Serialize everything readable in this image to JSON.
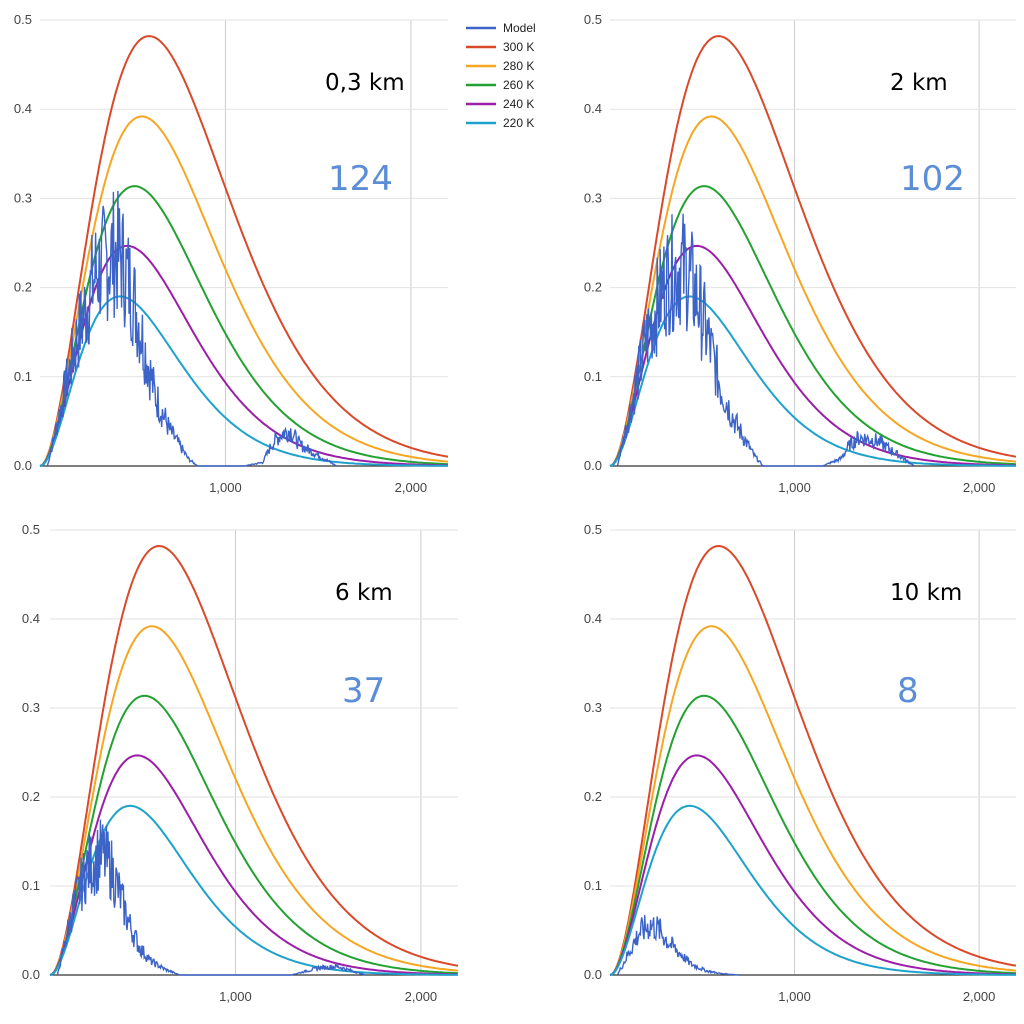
{
  "legend": [
    {
      "name": "Model",
      "color": "#3b63c8"
    },
    {
      "name": "300 K",
      "color": "#d9492a"
    },
    {
      "name": "280 K",
      "color": "#f5a623"
    },
    {
      "name": "260 K",
      "color": "#23a131"
    },
    {
      "name": "240 K",
      "color": "#9b1ea8"
    },
    {
      "name": "220 K",
      "color": "#1ea2cc"
    }
  ],
  "chart_data": [
    {
      "type": "line",
      "annotation_altitude": "0,3 km",
      "annotation_value": "124",
      "xlim": [
        0,
        2200
      ],
      "ylim": [
        0,
        0.5
      ],
      "x_ticks": [
        0,
        1000,
        2000
      ],
      "x_tick_labels": [
        "",
        "1,000",
        "2,000"
      ],
      "y_ticks": [
        0,
        0.1,
        0.2,
        0.3,
        0.4,
        0.5
      ],
      "y_tick_labels": [
        "0.0",
        "0.1",
        "0.2",
        "0.3",
        "0.4",
        "0.5"
      ],
      "grid": true,
      "legend_position": "right",
      "curve_peaks": [
        {
          "name": "300 K",
          "peak_x": 590,
          "peak_y": 0.482
        },
        {
          "name": "280 K",
          "peak_x": 550,
          "peak_y": 0.392
        },
        {
          "name": "260 K",
          "peak_x": 510,
          "peak_y": 0.313
        },
        {
          "name": "240 K",
          "peak_x": 470,
          "peak_y": 0.247
        },
        {
          "name": "220 K",
          "peak_x": 430,
          "peak_y": 0.19
        }
      ],
      "model_envelope": {
        "x": [
          40,
          200,
          300,
          400,
          440,
          500,
          560,
          620,
          700,
          800,
          850,
          1100,
          1200,
          1250,
          1300,
          1350,
          1400,
          1600
        ],
        "y": [
          0.0,
          0.18,
          0.27,
          0.3,
          0.29,
          0.24,
          0.17,
          0.1,
          0.05,
          0.01,
          0.0,
          0.0,
          0.005,
          0.03,
          0.045,
          0.05,
          0.03,
          0.0
        ]
      }
    },
    {
      "type": "line",
      "annotation_altitude": "2 km",
      "annotation_value": "102",
      "xlim": [
        0,
        2200
      ],
      "ylim": [
        0,
        0.5
      ],
      "x_ticks": [
        0,
        1000,
        2000
      ],
      "x_tick_labels": [
        "",
        "1,000",
        "2,000"
      ],
      "y_ticks": [
        0,
        0.1,
        0.2,
        0.3,
        0.4,
        0.5
      ],
      "y_tick_labels": [
        "0.0",
        "0.1",
        "0.2",
        "0.3",
        "0.4",
        "0.5"
      ],
      "grid": true,
      "model_envelope": {
        "x": [
          40,
          200,
          300,
          380,
          420,
          480,
          540,
          600,
          680,
          780,
          830,
          1150,
          1250,
          1300,
          1350,
          1450,
          1650
        ],
        "y": [
          0.0,
          0.18,
          0.26,
          0.28,
          0.27,
          0.23,
          0.17,
          0.11,
          0.06,
          0.015,
          0.0,
          0.0,
          0.01,
          0.03,
          0.04,
          0.035,
          0.0
        ]
      }
    },
    {
      "type": "line",
      "annotation_altitude": "6 km",
      "annotation_value": "37",
      "xlim": [
        0,
        2200
      ],
      "ylim": [
        0,
        0.5
      ],
      "x_ticks": [
        0,
        1000,
        2000
      ],
      "x_tick_labels": [
        "",
        "1,000",
        "2,000"
      ],
      "y_ticks": [
        0,
        0.1,
        0.2,
        0.3,
        0.4,
        0.5
      ],
      "y_tick_labels": [
        "0.0",
        "0.1",
        "0.2",
        "0.3",
        "0.4",
        "0.5"
      ],
      "grid": true,
      "model_envelope": {
        "x": [
          40,
          120,
          200,
          280,
          330,
          380,
          430,
          480,
          540,
          620,
          700,
          1300,
          1450,
          1550,
          1700
        ],
        "y": [
          0.0,
          0.09,
          0.15,
          0.17,
          0.15,
          0.11,
          0.07,
          0.04,
          0.02,
          0.008,
          0.0,
          0.0,
          0.01,
          0.012,
          0.0
        ]
      }
    },
    {
      "type": "line",
      "annotation_altitude": "10 km",
      "annotation_value": "8",
      "xlim": [
        0,
        2200
      ],
      "ylim": [
        0,
        0.5
      ],
      "x_ticks": [
        0,
        1000,
        2000
      ],
      "x_tick_labels": [
        "",
        "1,000",
        "2,000"
      ],
      "y_ticks": [
        0,
        0.1,
        0.2,
        0.3,
        0.4,
        0.5
      ],
      "y_tick_labels": [
        "0.0",
        "0.1",
        "0.2",
        "0.3",
        "0.4",
        "0.5"
      ],
      "grid": true,
      "model_envelope": {
        "x": [
          40,
          100,
          160,
          220,
          260,
          320,
          380,
          440,
          520,
          600,
          700
        ],
        "y": [
          0.0,
          0.03,
          0.06,
          0.07,
          0.065,
          0.045,
          0.03,
          0.015,
          0.006,
          0.002,
          0.0
        ]
      }
    }
  ]
}
